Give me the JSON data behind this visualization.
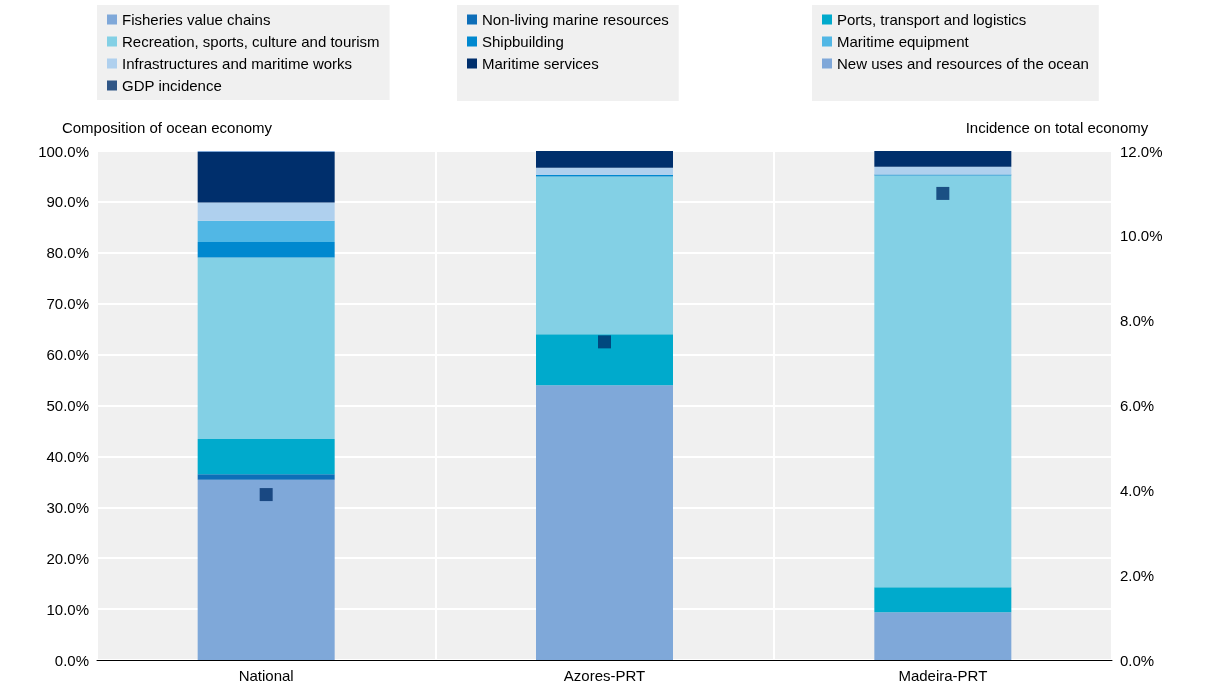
{
  "chart_data": {
    "type": "bar",
    "stacked": true,
    "ylabel": "Composition of ocean economy",
    "y2label": "Incidence on total economy",
    "categories": [
      "National",
      "Azores-PRT",
      "Madeira-PRT"
    ],
    "series": [
      {
        "name": "Fisheries value chains",
        "color": "#7fa8d9",
        "values": [
          35.4,
          54.0,
          9.4
        ]
      },
      {
        "name": "Non-living marine resources",
        "color": "#0d6eb8",
        "values": [
          1.1,
          0,
          0
        ]
      },
      {
        "name": "Ports, transport and logistics",
        "color": "#00aacc",
        "values": [
          6.9,
          10.0,
          4.9
        ]
      },
      {
        "name": "Recreation, sports, culture and tourism",
        "color": "#83d0e5",
        "values": [
          35.7,
          31.0,
          80.9
        ]
      },
      {
        "name": "Shipbuilding",
        "color": "#0088cf",
        "values": [
          3.0,
          0.3,
          0.2
        ]
      },
      {
        "name": "Maritime equipment",
        "color": "#51b7e5",
        "values": [
          4.2,
          0,
          0
        ]
      },
      {
        "name": "Infrastructures and maritime works",
        "color": "#afd0ee",
        "values": [
          3.6,
          1.4,
          1.5
        ]
      },
      {
        "name": "Maritime services",
        "color": "#002f6c",
        "values": [
          9.9,
          3.3,
          3.1
        ]
      },
      {
        "name": "New uses and resources of the ocean",
        "color": "#7fa8d9",
        "values": [
          0.2,
          0,
          0
        ]
      },
      {
        "name": "GDP incidence",
        "type": "scatter",
        "axis": "y2",
        "marker": "square",
        "color": "#002f6c",
        "x": [
          "National",
          "Azores-PRT",
          "Madeira-PRT"
        ],
        "values": [
          3.9,
          7.5,
          11.0
        ]
      }
    ],
    "ylim": [
      0,
      100
    ],
    "yticks": [
      {
        "value": 0,
        "label": "0.0%"
      },
      {
        "value": 10,
        "label": "10.0%"
      },
      {
        "value": 20,
        "label": "20.0%"
      },
      {
        "value": 30,
        "label": "30.0%"
      },
      {
        "value": 40,
        "label": "40.0%"
      },
      {
        "value": 50,
        "label": "50.0%"
      },
      {
        "value": 60,
        "label": "60.0%"
      },
      {
        "value": 70,
        "label": "70.0%"
      },
      {
        "value": 80,
        "label": "80.0%"
      },
      {
        "value": 90,
        "label": "90.0%"
      },
      {
        "value": 100,
        "label": "100.0%"
      }
    ],
    "y2lim": [
      0,
      12
    ],
    "y2ticks": [
      {
        "value": 0,
        "label": "0.0%"
      },
      {
        "value": 2,
        "label": "2.0%"
      },
      {
        "value": 4,
        "label": "4.0%"
      },
      {
        "value": 6,
        "label": "6.0%"
      },
      {
        "value": 8,
        "label": "8.0%"
      },
      {
        "value": 10,
        "label": "10.0%"
      },
      {
        "value": 12,
        "label": "12.0%"
      }
    ],
    "grid": true,
    "legend": "top"
  }
}
